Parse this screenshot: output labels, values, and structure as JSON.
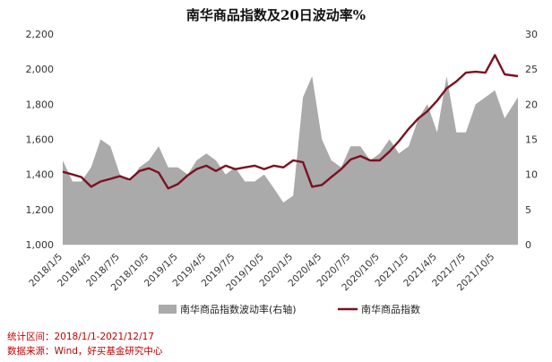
{
  "chart_data": {
    "type": "area+line",
    "title": "南华商品指数及20日波动率%",
    "left_axis": {
      "ticks": [
        "1,000",
        "1,200",
        "1,400",
        "1,600",
        "1,800",
        "2,000",
        "2,200"
      ],
      "range": [
        1000,
        2200
      ]
    },
    "right_axis": {
      "ticks": [
        "0",
        "5",
        "10",
        "15",
        "20",
        "25",
        "30"
      ],
      "range": [
        0,
        30
      ]
    },
    "x_ticks": [
      "2018/1/5",
      "2018/4/5",
      "2018/7/5",
      "2018/10/5",
      "2019/1/5",
      "2019/4/5",
      "2019/7/5",
      "2019/10/5",
      "2020/1/5",
      "2020/4/5",
      "2020/7/5",
      "2020/10/5",
      "2021/1/5",
      "2021/4/5",
      "2021/7/5",
      "2021/10/5"
    ],
    "x_range": [
      "2018/1/5",
      "2021/12/17"
    ],
    "legend_position": "bottom",
    "series": [
      {
        "name": "南华商品指数波动率(右轴)",
        "axis": "right",
        "style": "area",
        "color": "#aaaaaa",
        "x": [
          "2018/1/5",
          "2018/2/5",
          "2018/3/5",
          "2018/4/5",
          "2018/5/5",
          "2018/6/5",
          "2018/7/5",
          "2018/8/5",
          "2018/9/5",
          "2018/10/5",
          "2018/11/5",
          "2018/12/5",
          "2019/1/5",
          "2019/2/5",
          "2019/3/5",
          "2019/4/5",
          "2019/5/5",
          "2019/6/5",
          "2019/7/5",
          "2019/8/5",
          "2019/9/5",
          "2019/10/5",
          "2019/11/5",
          "2019/12/5",
          "2020/1/5",
          "2020/2/5",
          "2020/3/5",
          "2020/4/5",
          "2020/5/5",
          "2020/6/5",
          "2020/7/5",
          "2020/8/5",
          "2020/9/5",
          "2020/10/5",
          "2020/11/5",
          "2020/12/5",
          "2021/1/5",
          "2021/2/5",
          "2021/3/5",
          "2021/4/5",
          "2021/5/5",
          "2021/6/5",
          "2021/7/5",
          "2021/8/5",
          "2021/9/5",
          "2021/10/5",
          "2021/11/5",
          "2021/12/17"
        ],
        "values": [
          12,
          9,
          9,
          11,
          15,
          14,
          10,
          9,
          11,
          12,
          14,
          11,
          11,
          10,
          12,
          13,
          12,
          10,
          11,
          9,
          9,
          10,
          8,
          6,
          7,
          21,
          24,
          15,
          12,
          11,
          14,
          14,
          12,
          13,
          15,
          13,
          14,
          18,
          20,
          16,
          24,
          16,
          16,
          20,
          21,
          22,
          18,
          21
        ]
      },
      {
        "name": "南华商品指数",
        "axis": "left",
        "style": "line",
        "color": "#7b1121",
        "x": [
          "2018/1/5",
          "2018/2/5",
          "2018/3/5",
          "2018/4/5",
          "2018/5/5",
          "2018/6/5",
          "2018/7/5",
          "2018/8/5",
          "2018/9/5",
          "2018/10/5",
          "2018/11/5",
          "2018/12/5",
          "2019/1/5",
          "2019/2/5",
          "2019/3/5",
          "2019/4/5",
          "2019/5/5",
          "2019/6/5",
          "2019/7/5",
          "2019/8/5",
          "2019/9/5",
          "2019/10/5",
          "2019/11/5",
          "2019/12/5",
          "2020/1/5",
          "2020/2/5",
          "2020/3/5",
          "2020/4/5",
          "2020/5/5",
          "2020/6/5",
          "2020/7/5",
          "2020/8/5",
          "2020/9/5",
          "2020/10/5",
          "2020/11/5",
          "2020/12/5",
          "2021/1/5",
          "2021/2/5",
          "2021/3/5",
          "2021/4/5",
          "2021/5/5",
          "2021/6/5",
          "2021/7/5",
          "2021/8/5",
          "2021/9/5",
          "2021/10/5",
          "2021/11/5",
          "2021/12/17"
        ],
        "values": [
          1415,
          1400,
          1385,
          1330,
          1360,
          1375,
          1390,
          1370,
          1420,
          1435,
          1410,
          1320,
          1345,
          1395,
          1430,
          1450,
          1420,
          1450,
          1430,
          1440,
          1450,
          1430,
          1450,
          1440,
          1480,
          1470,
          1330,
          1340,
          1385,
          1430,
          1485,
          1505,
          1480,
          1480,
          1530,
          1590,
          1660,
          1720,
          1760,
          1820,
          1890,
          1930,
          1980,
          1985,
          1980,
          2080,
          1970,
          1960
        ]
      }
    ]
  },
  "footnotes": {
    "period": "统计区间：2018/1/1-2021/12/17",
    "source": "数据来源：Wind，好买基金研究中心"
  }
}
